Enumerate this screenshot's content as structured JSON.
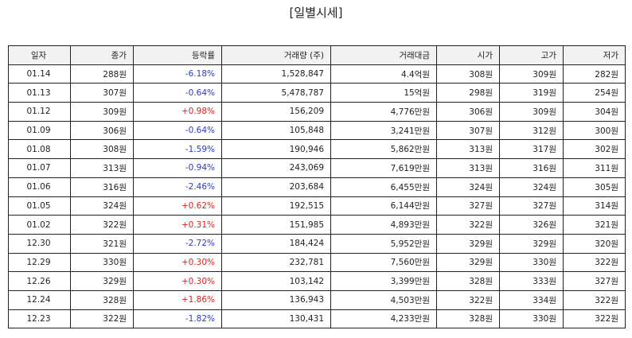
{
  "title": "[일별시세]",
  "colors": {
    "up": "#e0201e",
    "down": "#2a3bc8"
  },
  "columns": [
    "일자",
    "종가",
    "등락률",
    "거래량 (주)",
    "거래대금",
    "시가",
    "고가",
    "저가"
  ],
  "rows": [
    {
      "date": "01.14",
      "close": "288원",
      "change": "-6.18%",
      "direction": "down",
      "volume": "1,528,847",
      "amount": "4.4억원",
      "open": "308원",
      "high": "309원",
      "low": "282원"
    },
    {
      "date": "01.13",
      "close": "307원",
      "change": "-0.64%",
      "direction": "down",
      "volume": "5,478,787",
      "amount": "15억원",
      "open": "298원",
      "high": "319원",
      "low": "254원"
    },
    {
      "date": "01.12",
      "close": "309원",
      "change": "+0.98%",
      "direction": "up",
      "volume": "156,209",
      "amount": "4,776만원",
      "open": "306원",
      "high": "309원",
      "low": "304원"
    },
    {
      "date": "01.09",
      "close": "306원",
      "change": "-0.64%",
      "direction": "down",
      "volume": "105,848",
      "amount": "3,241만원",
      "open": "307원",
      "high": "312원",
      "low": "300원"
    },
    {
      "date": "01.08",
      "close": "308원",
      "change": "-1.59%",
      "direction": "down",
      "volume": "190,946",
      "amount": "5,862만원",
      "open": "313원",
      "high": "317원",
      "low": "302원"
    },
    {
      "date": "01.07",
      "close": "313원",
      "change": "-0.94%",
      "direction": "down",
      "volume": "243,069",
      "amount": "7,619만원",
      "open": "313원",
      "high": "316원",
      "low": "311원"
    },
    {
      "date": "01.06",
      "close": "316원",
      "change": "-2.46%",
      "direction": "down",
      "volume": "203,684",
      "amount": "6,455만원",
      "open": "324원",
      "high": "324원",
      "low": "305원"
    },
    {
      "date": "01.05",
      "close": "324원",
      "change": "+0.62%",
      "direction": "up",
      "volume": "192,515",
      "amount": "6,144만원",
      "open": "327원",
      "high": "327원",
      "low": "314원"
    },
    {
      "date": "01.02",
      "close": "322원",
      "change": "+0.31%",
      "direction": "up",
      "volume": "151,985",
      "amount": "4,893만원",
      "open": "322원",
      "high": "326원",
      "low": "321원"
    },
    {
      "date": "12.30",
      "close": "321원",
      "change": "-2.72%",
      "direction": "down",
      "volume": "184,424",
      "amount": "5,952만원",
      "open": "329원",
      "high": "329원",
      "low": "320원"
    },
    {
      "date": "12.29",
      "close": "330원",
      "change": "+0.30%",
      "direction": "up",
      "volume": "232,781",
      "amount": "7,560만원",
      "open": "329원",
      "high": "330원",
      "low": "322원"
    },
    {
      "date": "12.26",
      "close": "329원",
      "change": "+0.30%",
      "direction": "up",
      "volume": "103,142",
      "amount": "3,399만원",
      "open": "328원",
      "high": "333원",
      "low": "327원"
    },
    {
      "date": "12.24",
      "close": "328원",
      "change": "+1.86%",
      "direction": "up",
      "volume": "136,943",
      "amount": "4,503만원",
      "open": "322원",
      "high": "334원",
      "low": "322원"
    },
    {
      "date": "12.23",
      "close": "322원",
      "change": "-1.82%",
      "direction": "down",
      "volume": "130,431",
      "amount": "4,233만원",
      "open": "328원",
      "high": "330원",
      "low": "322원"
    }
  ]
}
